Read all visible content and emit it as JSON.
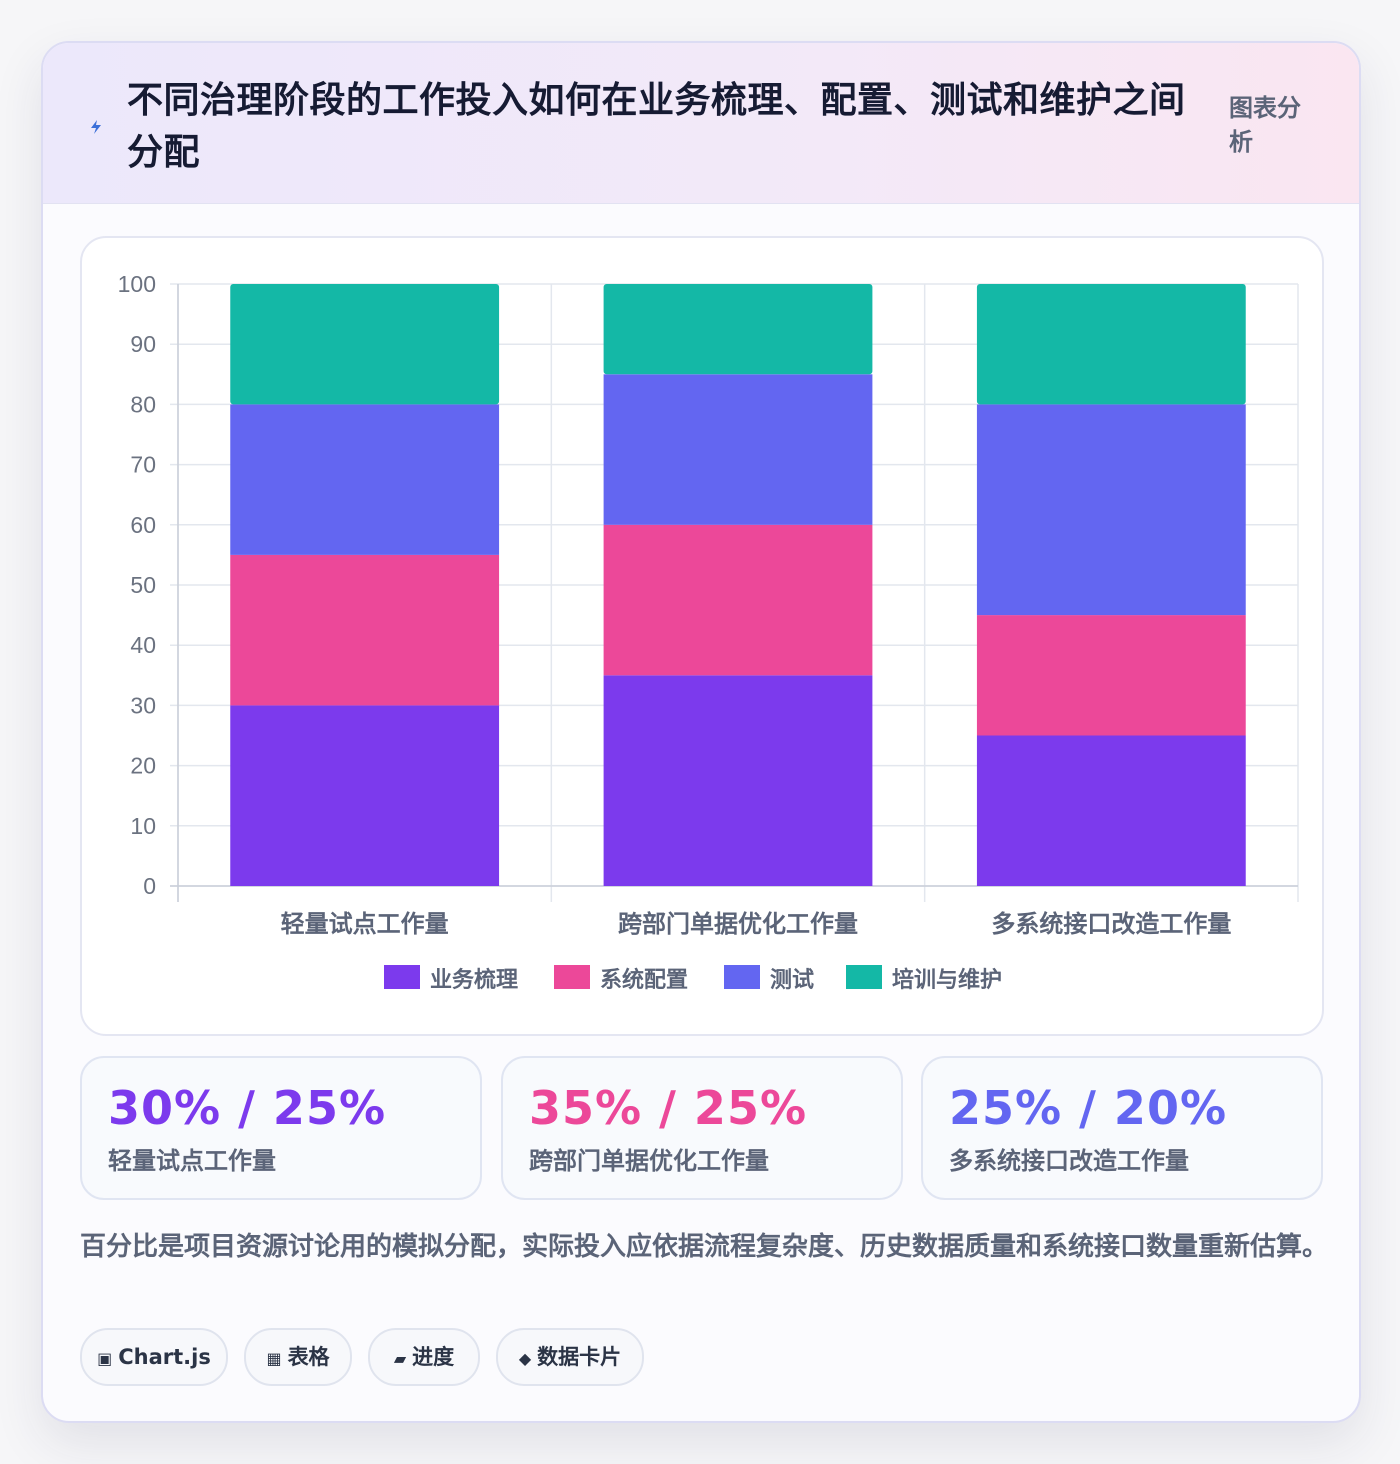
{
  "header": {
    "title": "不同治理阶段的工作投入如何在业务梳理、配置、测试和维护之间分配",
    "badge": "图表分析",
    "icon": "lightning-icon"
  },
  "colors": {
    "business": "#7c3aed",
    "config": "#ec4899",
    "testing": "#6366f1",
    "training": "#14b8a6"
  },
  "chart_data": {
    "type": "bar",
    "stacked": true,
    "categories": [
      "轻量试点工作量",
      "跨部门单据优化工作量",
      "多系统接口改造工作量"
    ],
    "series": [
      {
        "name": "业务梳理",
        "values": [
          30,
          35,
          25
        ],
        "color": "#7c3aed"
      },
      {
        "name": "系统配置",
        "values": [
          25,
          25,
          20
        ],
        "color": "#ec4899"
      },
      {
        "name": "测试",
        "values": [
          25,
          25,
          35
        ],
        "color": "#6366f1"
      },
      {
        "name": "培训与维护",
        "values": [
          20,
          15,
          20
        ],
        "color": "#14b8a6"
      }
    ],
    "yticks": [
      "0",
      "10",
      "20",
      "30",
      "40",
      "50",
      "60",
      "70",
      "80",
      "90",
      "100"
    ],
    "ylim": [
      0,
      100
    ],
    "grid": true,
    "legend": "bottom-center"
  },
  "stats": [
    {
      "value": "30% / 25%",
      "label": "轻量试点工作量",
      "color": "#7c3aed"
    },
    {
      "value": "35% / 25%",
      "label": "跨部门单据优化工作量",
      "color": "#ec4899"
    },
    {
      "value": "25% / 20%",
      "label": "多系统接口改造工作量",
      "color": "#6366f1"
    }
  ],
  "note": "百分比是项目资源讨论用的模拟分配，实际投入应依据流程复杂度、历史数据质量和系统接口数量重新估算。",
  "tags": [
    {
      "icon": "▣",
      "label": "Chart.js",
      "icon_name": "chart-icon"
    },
    {
      "icon": "▦",
      "label": "表格",
      "icon_name": "table-icon"
    },
    {
      "icon": "▰",
      "label": "进度",
      "icon_name": "progress-icon"
    },
    {
      "icon": "◆",
      "label": "数据卡片",
      "icon_name": "card-icon"
    }
  ]
}
